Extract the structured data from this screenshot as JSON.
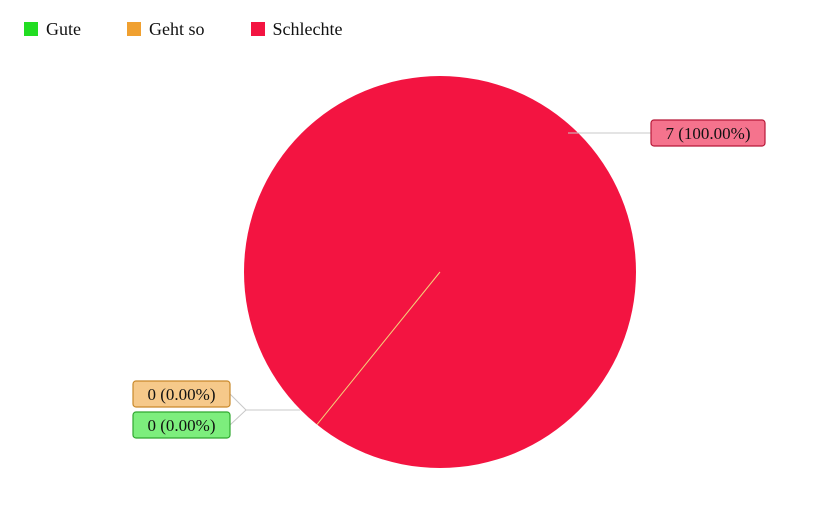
{
  "chart_data": {
    "type": "pie",
    "title": "",
    "legend_position": "top-left",
    "series": [
      {
        "name": "Gute",
        "value": 0,
        "percent": "0.00%",
        "label": "0 (0.00%)",
        "color": "#22dd22",
        "label_fill": "#7dee7d",
        "label_border": "#2fa82f"
      },
      {
        "name": "Geht so",
        "value": 0,
        "percent": "0.00%",
        "label": "0 (0.00%)",
        "color": "#f0a030",
        "label_fill": "#f6c98a",
        "label_border": "#c9892a"
      },
      {
        "name": "Schlechte",
        "value": 7,
        "percent": "100.00%",
        "label": "7 (100.00%)",
        "color": "#f31441",
        "label_fill": "#f5738d",
        "label_border": "#b81838"
      }
    ]
  }
}
